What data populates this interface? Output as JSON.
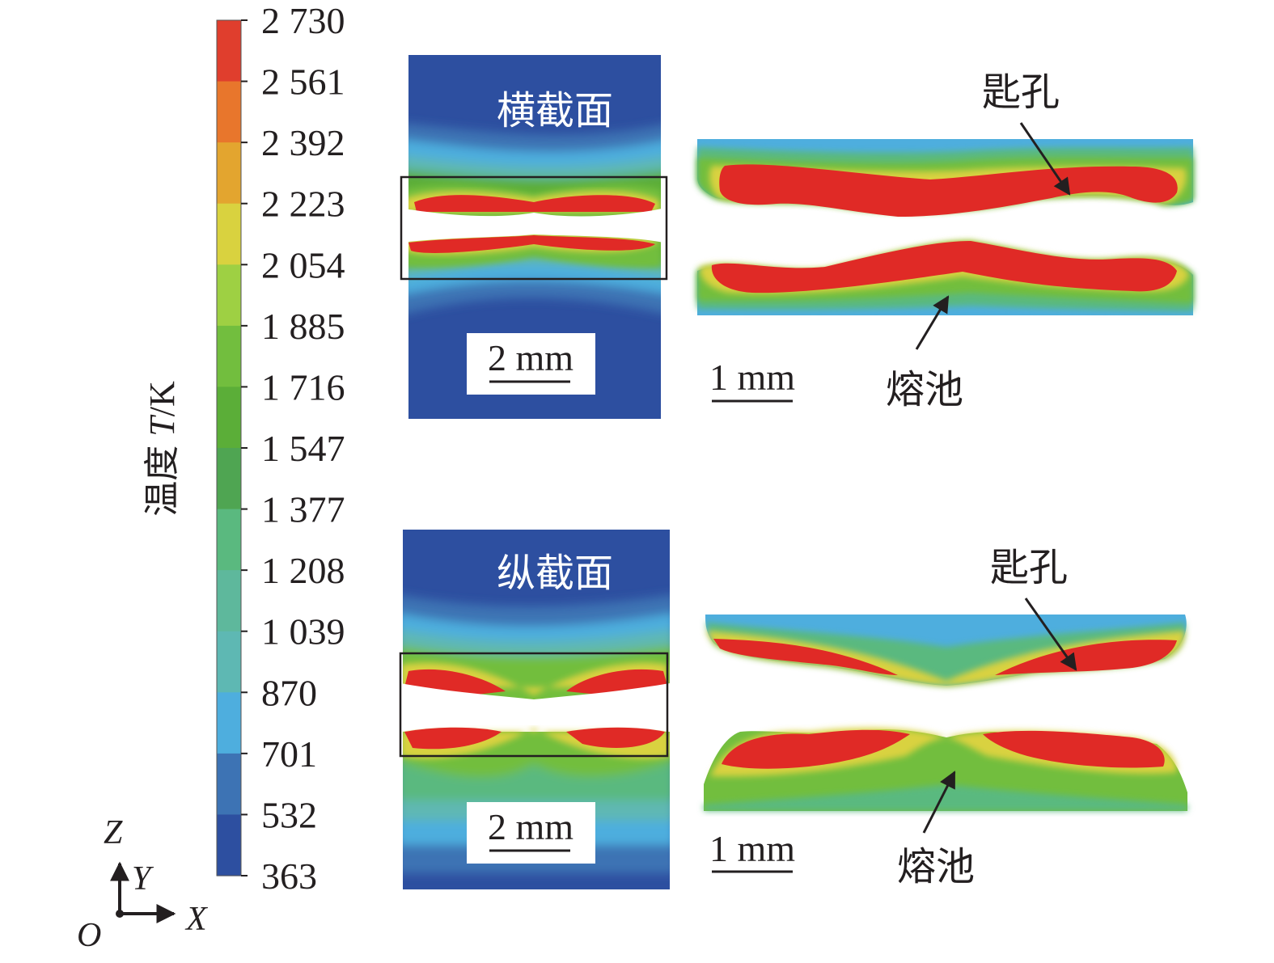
{
  "colorbar": {
    "title_cn": "温度",
    "title_var": "T",
    "title_unit": "/K",
    "ticks": [
      "2 730",
      "2 561",
      "2 392",
      "2 223",
      "2 054",
      "1 885",
      "1 716",
      "1 547",
      "1 377",
      "1 208",
      "1 039",
      "870",
      "701",
      "532",
      "363"
    ],
    "colors": [
      "#e03e2d",
      "#e8762c",
      "#e3a52f",
      "#d9d23f",
      "#9ed043",
      "#72be3e",
      "#5bae38",
      "#4fa552",
      "#5ab97f",
      "#5eb89c",
      "#5eb8b3",
      "#4eaede",
      "#3d73b4",
      "#2d4fa0"
    ]
  },
  "axes": {
    "z": "Z",
    "y": "Y",
    "x": "X",
    "origin": "O"
  },
  "panels": {
    "cross_title": "横截面",
    "long_title": "纵截面",
    "scale_small": "2 mm",
    "scale_large": "1 mm",
    "keyhole": "匙孔",
    "melt_pool": "熔池"
  }
}
